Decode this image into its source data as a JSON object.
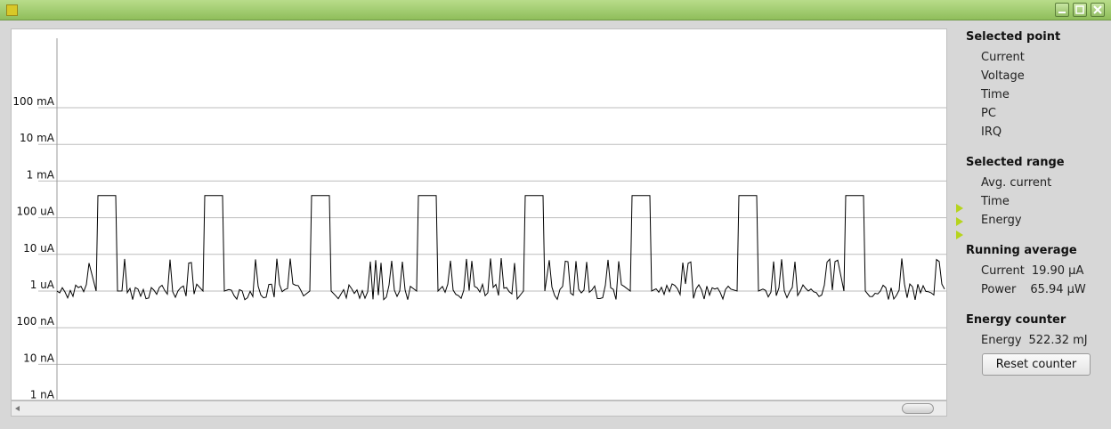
{
  "window": {
    "icon": "app-icon"
  },
  "chart_data": {
    "type": "line",
    "title": "",
    "xlabel": "",
    "ylabel": "",
    "scale": "log",
    "y_ticks": [
      "100 mA",
      "10 mA",
      "1 mA",
      "100 uA",
      "10 uA",
      "1 uA",
      "100 nA",
      "10 nA",
      "1 nA"
    ],
    "grid": true,
    "series": [
      {
        "pattern": "periodic",
        "period_count": 9,
        "baseline_uA": 1,
        "spike_peak_uA": 8,
        "pulse_level_uA": 400,
        "pulse_x": [
          111,
          231,
          351,
          471,
          591,
          711,
          831,
          951,
          1071
        ]
      }
    ]
  },
  "panel": {
    "selected_point": {
      "title": "Selected point",
      "items": [
        "Current",
        "Voltage",
        "Time",
        "PC",
        "IRQ"
      ]
    },
    "selected_range": {
      "title": "Selected range",
      "items": [
        "Avg. current",
        "Time",
        "Energy"
      ]
    },
    "running_average": {
      "title": "Running average",
      "current_label": "Current",
      "current_value": "19.90 µA",
      "power_label": "Power",
      "power_value": "65.94 µW"
    },
    "energy_counter": {
      "title": "Energy counter",
      "energy_label": "Energy",
      "energy_value": "522.32 mJ",
      "reset_label": "Reset counter"
    }
  }
}
